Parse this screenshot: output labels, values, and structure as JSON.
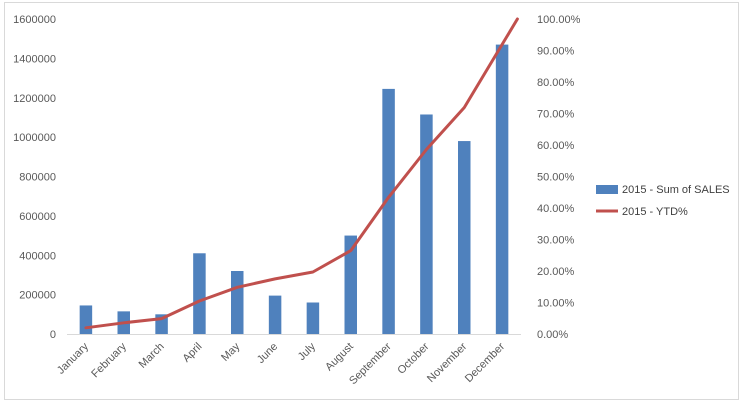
{
  "chart_data": {
    "type": "bar",
    "categories": [
      "January",
      "February",
      "March",
      "April",
      "May",
      "June",
      "July",
      "August",
      "September",
      "October",
      "November",
      "December"
    ],
    "series": [
      {
        "name": "2015 - Sum of SALES",
        "type": "bar",
        "axis": "left",
        "color": "#4f81bd",
        "values": [
          145000,
          115000,
          100000,
          410000,
          320000,
          195000,
          160000,
          500000,
          1245000,
          1115000,
          980000,
          1470000
        ]
      },
      {
        "name": "2015 - YTD%",
        "type": "line",
        "axis": "right",
        "color": "#c0504d",
        "values": [
          0.0198,
          0.0354,
          0.049,
          0.1048,
          0.1484,
          0.1749,
          0.1967,
          0.2647,
          0.4341,
          0.5858,
          0.7191,
          0.9191
        ]
      }
    ],
    "left_axis": {
      "min": 0,
      "max": 1600000,
      "ticks": [
        "0",
        "200000",
        "400000",
        "600000",
        "800000",
        "1000000",
        "1200000",
        "1400000",
        "1600000"
      ]
    },
    "right_axis": {
      "min": 0,
      "max": 1,
      "ticks": [
        "0.00%",
        "10.00%",
        "20.00%",
        "30.00%",
        "40.00%",
        "50.00%",
        "60.00%",
        "70.00%",
        "80.00%",
        "90.00%",
        "100.00%"
      ]
    },
    "grid": false,
    "legend": "right",
    "title": "",
    "xlabel": "",
    "ylabel": ""
  }
}
